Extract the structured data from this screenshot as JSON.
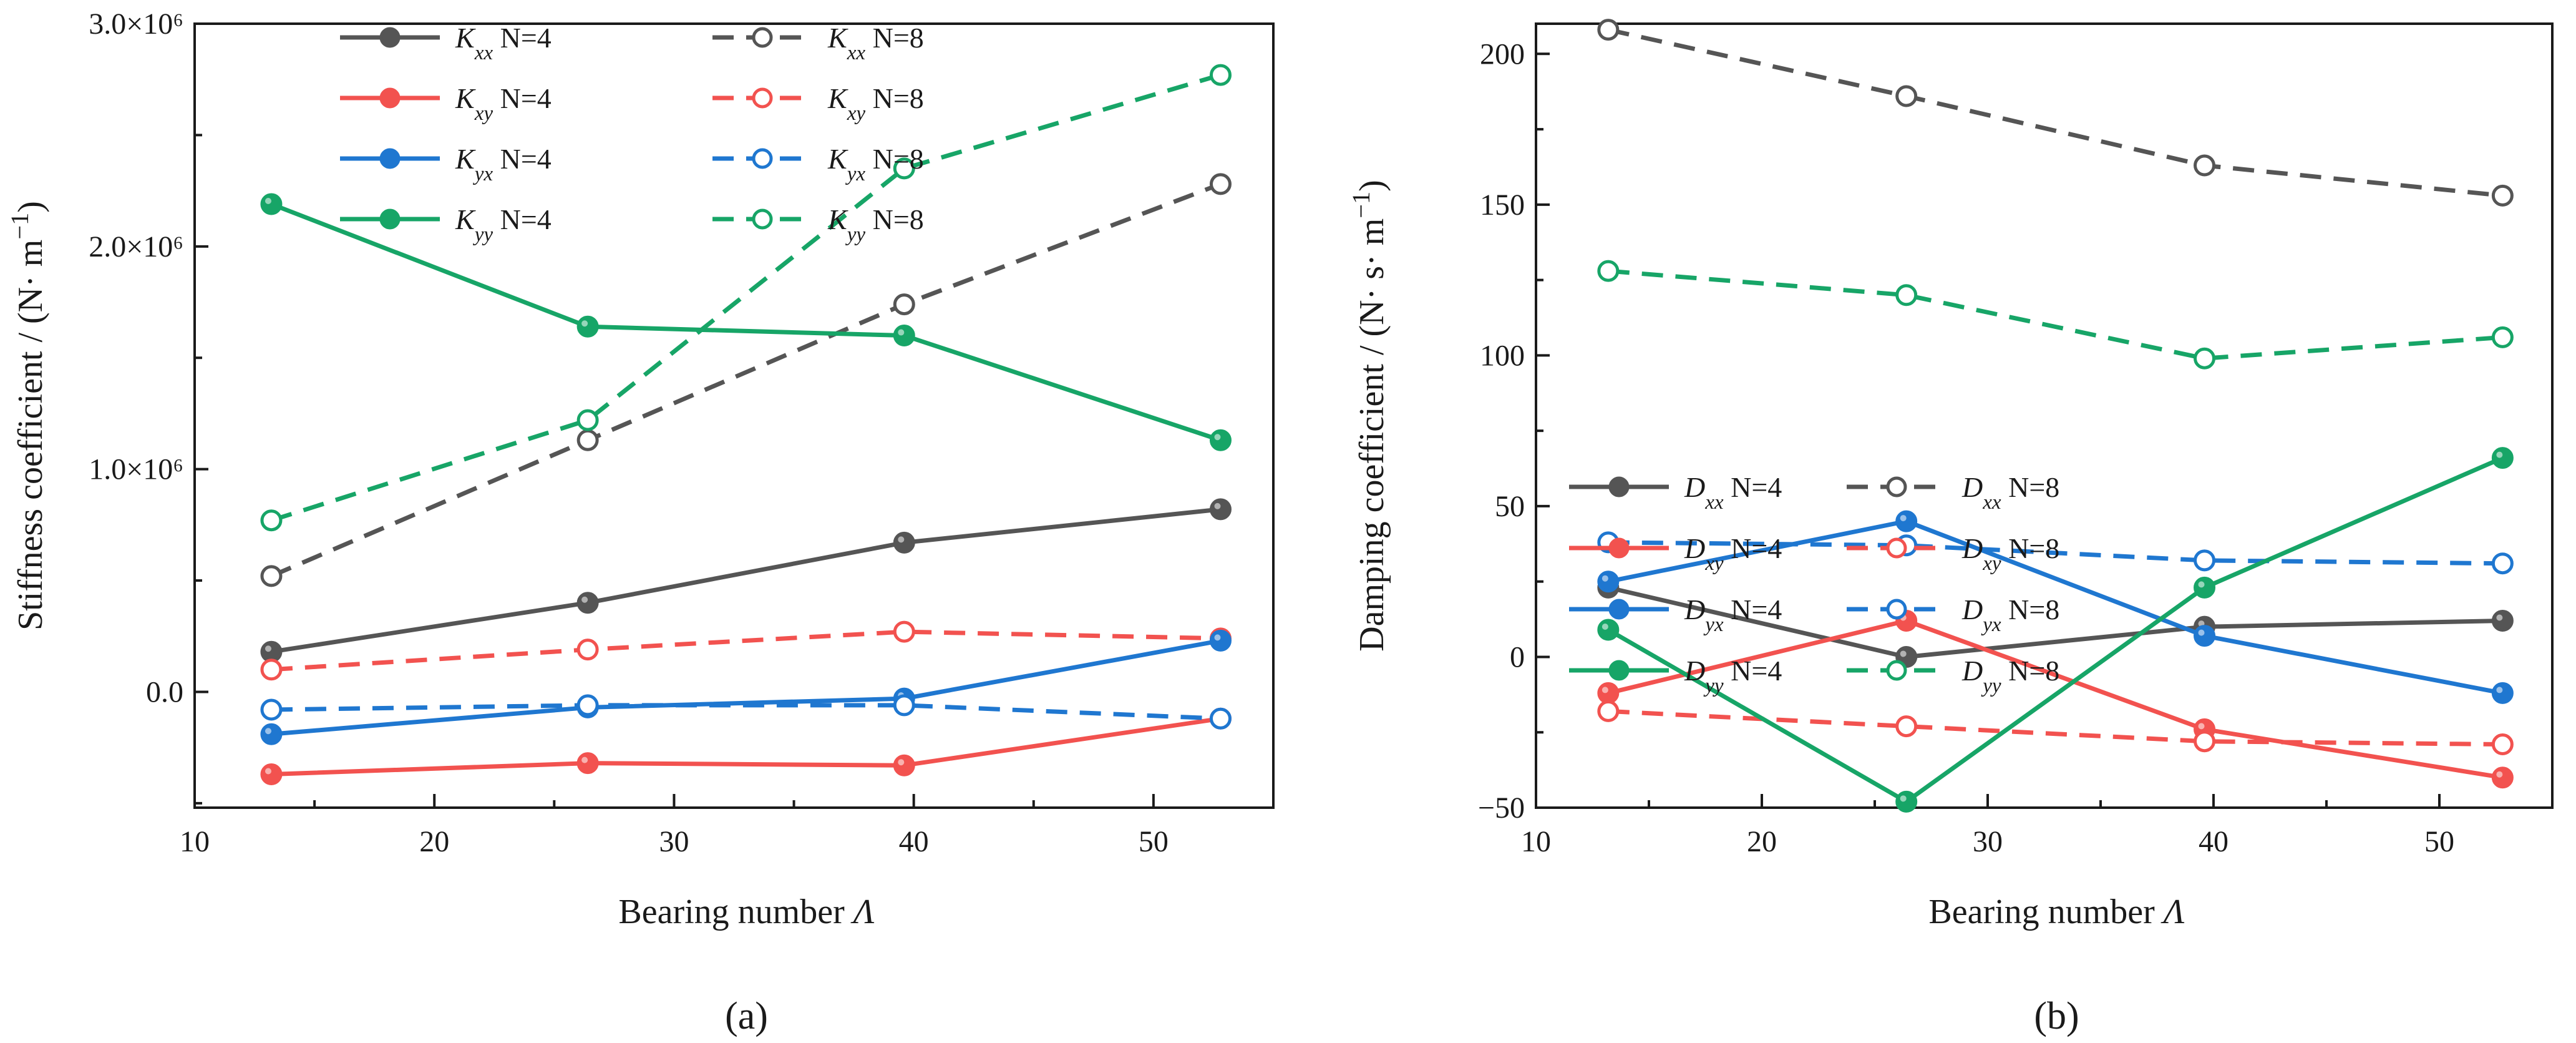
{
  "chart_data": [
    {
      "panel_label": "(a)",
      "type": "line",
      "x": [
        13.2,
        26.4,
        39.6,
        52.8
      ],
      "xlabel": "Bearing number Λ",
      "ylabel": "Stiffness coefficient / (N· m⁻¹)",
      "xlim": [
        10,
        55
      ],
      "ylim": [
        -520000,
        3000000
      ],
      "x_ticks": [
        10,
        20,
        30,
        40,
        50
      ],
      "y_ticks": [
        0,
        1000000,
        2000000,
        3000000
      ],
      "y_tick_labels": [
        "0.0",
        "1.0×10⁶",
        "2.0×10⁶",
        "3.0×10⁶"
      ],
      "grid": false,
      "legend_position": "top-left",
      "series": [
        {
          "name": "Kxx N=4",
          "sym": "K",
          "sub": "xx",
          "n_label": " N=4",
          "color": "#555555",
          "dash": false,
          "filled": true,
          "values": [
            180000,
            400000,
            670000,
            820000
          ]
        },
        {
          "name": "Kxx N=8",
          "sym": "K",
          "sub": "xx",
          "n_label": " N=8",
          "color": "#555555",
          "dash": true,
          "filled": false,
          "values": [
            520000,
            1130000,
            1740000,
            2280000
          ]
        },
        {
          "name": "Kxy N=4",
          "sym": "K",
          "sub": "xy",
          "n_label": " N=4",
          "color": "#f2524f",
          "dash": false,
          "filled": true,
          "values": [
            -370000,
            -320000,
            -330000,
            -120000
          ]
        },
        {
          "name": "Kxy N=8",
          "sym": "K",
          "sub": "xy",
          "n_label": " N=8",
          "color": "#f2524f",
          "dash": true,
          "filled": false,
          "values": [
            100000,
            190000,
            270000,
            240000
          ]
        },
        {
          "name": "Kyx N=4",
          "sym": "K",
          "sub": "yx",
          "n_label": " N=4",
          "color": "#1f77d0",
          "dash": false,
          "filled": true,
          "values": [
            -190000,
            -70000,
            -30000,
            230000
          ]
        },
        {
          "name": "Kyx N=8",
          "sym": "K",
          "sub": "yx",
          "n_label": " N=8",
          "color": "#1f77d0",
          "dash": true,
          "filled": false,
          "values": [
            -80000,
            -60000,
            -60000,
            -120000
          ]
        },
        {
          "name": "Kyy N=4",
          "sym": "K",
          "sub": "yy",
          "n_label": " N=4",
          "color": "#17a567",
          "dash": false,
          "filled": true,
          "values": [
            2190000,
            1640000,
            1600000,
            1130000
          ]
        },
        {
          "name": "Kyy N=8",
          "sym": "K",
          "sub": "yy",
          "n_label": " N=8",
          "color": "#17a567",
          "dash": true,
          "filled": false,
          "values": [
            770000,
            1220000,
            2350000,
            2770000
          ]
        }
      ]
    },
    {
      "panel_label": "(b)",
      "type": "line",
      "x": [
        13.2,
        26.4,
        39.6,
        52.8
      ],
      "xlabel": "Bearing number Λ",
      "ylabel": "Damping coefficient / (N· s· m⁻¹)",
      "xlim": [
        10,
        55
      ],
      "ylim": [
        -50,
        210
      ],
      "x_ticks": [
        10,
        20,
        30,
        40,
        50
      ],
      "y_ticks": [
        -50,
        0,
        50,
        100,
        150,
        200
      ],
      "y_tick_labels": [
        "−50",
        "0",
        "50",
        "100",
        "150",
        "200"
      ],
      "grid": false,
      "legend_position": "center-left",
      "series": [
        {
          "name": "Dxx N=4",
          "sym": "D",
          "sub": "xx",
          "n_label": " N=4",
          "color": "#555555",
          "dash": false,
          "filled": true,
          "values": [
            23,
            0,
            10,
            12
          ]
        },
        {
          "name": "Dxx N=8",
          "sym": "D",
          "sub": "xx",
          "n_label": " N=8",
          "color": "#555555",
          "dash": true,
          "filled": false,
          "values": [
            208,
            186,
            163,
            153
          ]
        },
        {
          "name": "Dxy N=4",
          "sym": "D",
          "sub": "xy",
          "n_label": " N=4",
          "color": "#f2524f",
          "dash": false,
          "filled": true,
          "values": [
            -12,
            12,
            -24,
            -40
          ]
        },
        {
          "name": "Dxy N=8",
          "sym": "D",
          "sub": "xy",
          "n_label": " N=8",
          "color": "#f2524f",
          "dash": true,
          "filled": false,
          "values": [
            -18,
            -23,
            -28,
            -29
          ]
        },
        {
          "name": "Dyx N=4",
          "sym": "D",
          "sub": "yx",
          "n_label": " N=4",
          "color": "#1f77d0",
          "dash": false,
          "filled": true,
          "values": [
            25,
            45,
            7,
            -12
          ]
        },
        {
          "name": "Dyx N=8",
          "sym": "D",
          "sub": "yx",
          "n_label": " N=8",
          "color": "#1f77d0",
          "dash": true,
          "filled": false,
          "values": [
            38,
            37,
            32,
            31
          ]
        },
        {
          "name": "Dyy N=4",
          "sym": "D",
          "sub": "yy",
          "n_label": " N=4",
          "color": "#17a567",
          "dash": false,
          "filled": true,
          "values": [
            9,
            -48,
            23,
            66
          ]
        },
        {
          "name": "Dyy N=8",
          "sym": "D",
          "sub": "yy",
          "n_label": " N=8",
          "color": "#17a567",
          "dash": true,
          "filled": false,
          "values": [
            128,
            120,
            99,
            106
          ]
        }
      ]
    }
  ]
}
